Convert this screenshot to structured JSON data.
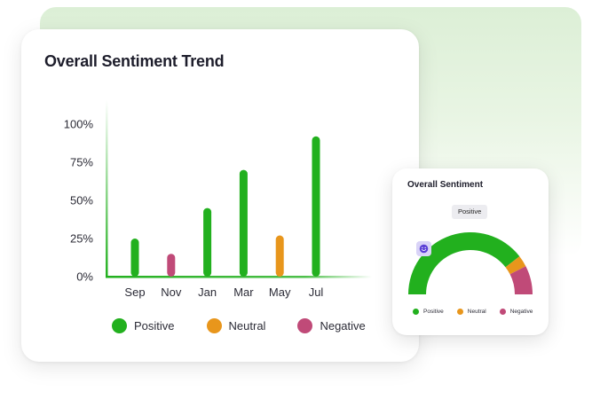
{
  "main_card": {
    "title": "Overall Sentiment Trend"
  },
  "chart_data": {
    "type": "bar",
    "title": "Overall Sentiment Trend",
    "categories": [
      "Sep",
      "Nov",
      "Jan",
      "Mar",
      "May",
      "Jul"
    ],
    "values": [
      25,
      15,
      45,
      70,
      27,
      92
    ],
    "bar_sentiment": [
      "Positive",
      "Negative",
      "Positive",
      "Positive",
      "Neutral",
      "Positive"
    ],
    "y_ticks": [
      "0%",
      "25%",
      "50%",
      "75%",
      "100%"
    ],
    "ylim": [
      0,
      100
    ],
    "grid": false,
    "legend_position": "bottom",
    "legend": [
      "Positive",
      "Neutral",
      "Negative"
    ]
  },
  "legend": [
    {
      "label": "Positive",
      "color": "#22b01e"
    },
    {
      "label": "Neutral",
      "color": "#e8961c"
    },
    {
      "label": "Negative",
      "color": "#c04a78"
    }
  ],
  "side_card": {
    "title": "Overall Sentiment",
    "badge": "Positive",
    "icon": "smile-icon",
    "gauge": {
      "type": "pie",
      "segments": [
        {
          "label": "Positive",
          "value": 79,
          "color": "#22b01e"
        },
        {
          "label": "Neutral",
          "value": 6,
          "color": "#e8961c"
        },
        {
          "label": "Negative",
          "value": 15,
          "color": "#c04a78"
        }
      ]
    }
  },
  "colors": {
    "positive": "#22b01e",
    "neutral": "#e8961c",
    "negative": "#c04a78",
    "background_tint": "#dcefd6"
  }
}
